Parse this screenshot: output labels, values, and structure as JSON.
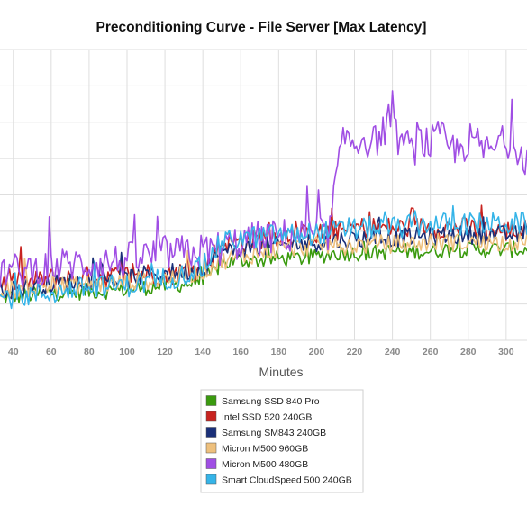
{
  "chart_data": {
    "type": "line",
    "title": "Preconditioning Curve - File Server [Max Latency]",
    "xlabel": "Minutes",
    "ylabel": "",
    "xlim": [
      33,
      311
    ],
    "ylim": [
      0,
      80
    ],
    "x_ticks": [
      40,
      60,
      80,
      100,
      120,
      140,
      160,
      180,
      200,
      220,
      240,
      260,
      280,
      300
    ],
    "grid": true,
    "legend_position": "bottom-center",
    "series": [
      {
        "name": "Samsung SSD 840 Pro",
        "color": "#3a9a0e",
        "x": [
          33,
          40,
          50,
          60,
          70,
          80,
          90,
          100,
          110,
          120,
          130,
          140,
          150,
          160,
          170,
          180,
          190,
          200,
          210,
          220,
          230,
          240,
          250,
          260,
          270,
          280,
          290,
          300,
          311
        ],
        "values": [
          12,
          12,
          12.5,
          13,
          13,
          13.5,
          13.5,
          14,
          14.5,
          15,
          15.5,
          16,
          21,
          22,
          22,
          22.5,
          22.5,
          23,
          24,
          24,
          24,
          24.5,
          24.5,
          24.5,
          25,
          25,
          25,
          25,
          25
        ]
      },
      {
        "name": "Intel SSD 520 240GB",
        "color": "#c8231f",
        "x": [
          33,
          40,
          50,
          60,
          70,
          80,
          90,
          100,
          110,
          120,
          130,
          140,
          150,
          160,
          170,
          180,
          190,
          200,
          210,
          220,
          230,
          240,
          250,
          260,
          270,
          280,
          290,
          300,
          311
        ],
        "values": [
          16,
          16,
          16,
          17,
          17,
          17.5,
          17.5,
          18,
          18.5,
          18,
          19,
          19,
          27,
          27,
          28,
          29,
          29,
          29,
          30,
          31,
          31,
          31,
          31,
          31,
          31,
          31,
          30,
          30,
          30
        ]
      },
      {
        "name": "Samsung SM843 240GB",
        "color": "#1a2f78",
        "x": [
          33,
          40,
          50,
          60,
          70,
          80,
          90,
          100,
          110,
          120,
          130,
          140,
          150,
          160,
          170,
          180,
          190,
          200,
          210,
          220,
          230,
          240,
          250,
          260,
          270,
          280,
          290,
          300,
          311
        ],
        "values": [
          14,
          14,
          15,
          15.5,
          16,
          16,
          16.5,
          17,
          18,
          18.5,
          19,
          19.5,
          24,
          25,
          25.5,
          26,
          26.5,
          27,
          27.5,
          28,
          28,
          28,
          28.5,
          28.5,
          29,
          29,
          29,
          29,
          29
        ]
      },
      {
        "name": "Micron M500 960GB",
        "color": "#eec07d",
        "x": [
          33,
          40,
          50,
          60,
          70,
          80,
          90,
          100,
          110,
          120,
          130,
          140,
          150,
          160,
          170,
          180,
          190,
          200,
          210,
          220,
          230,
          240,
          250,
          260,
          270,
          280,
          290,
          300,
          311
        ],
        "values": [
          14,
          14,
          14.5,
          15,
          15,
          15.5,
          15.5,
          16,
          16.5,
          17,
          18,
          19,
          22,
          23,
          24,
          25,
          25.5,
          26,
          26,
          26,
          26.5,
          26.5,
          26.5,
          27,
          27,
          27,
          27,
          27,
          27
        ]
      },
      {
        "name": "Micron M500 480GB",
        "color": "#a04ee4",
        "x": [
          33,
          40,
          50,
          60,
          70,
          80,
          90,
          100,
          110,
          120,
          130,
          140,
          150,
          160,
          170,
          180,
          190,
          200,
          205,
          207,
          210,
          215,
          220,
          225,
          230,
          235,
          240,
          245,
          250,
          255,
          260,
          265,
          270,
          275,
          280,
          285,
          290,
          295,
          300,
          305,
          311
        ],
        "values": [
          19,
          19,
          19.5,
          20,
          21,
          21,
          21.5,
          22,
          23,
          24,
          24,
          24.5,
          25.5,
          27,
          28,
          28.5,
          29,
          29,
          29.5,
          30,
          44,
          56,
          54,
          56,
          54,
          58,
          57,
          55,
          52,
          55,
          54,
          56,
          53,
          52,
          55,
          54,
          52,
          53,
          55,
          54,
          50
        ]
      },
      {
        "name": "Smart CloudSpeed 500 240GB",
        "color": "#35b4e8",
        "x": [
          33,
          40,
          50,
          60,
          70,
          80,
          90,
          100,
          110,
          120,
          130,
          140,
          150,
          160,
          170,
          180,
          190,
          200,
          210,
          220,
          230,
          240,
          250,
          260,
          270,
          280,
          290,
          300,
          311
        ],
        "values": [
          12,
          12,
          12.5,
          13,
          14,
          14.5,
          15,
          15,
          16,
          17,
          18,
          20,
          27,
          28,
          28.5,
          29,
          29,
          29.5,
          30,
          30.5,
          31,
          31,
          31.5,
          32,
          32,
          32,
          32,
          32,
          32
        ]
      }
    ]
  }
}
